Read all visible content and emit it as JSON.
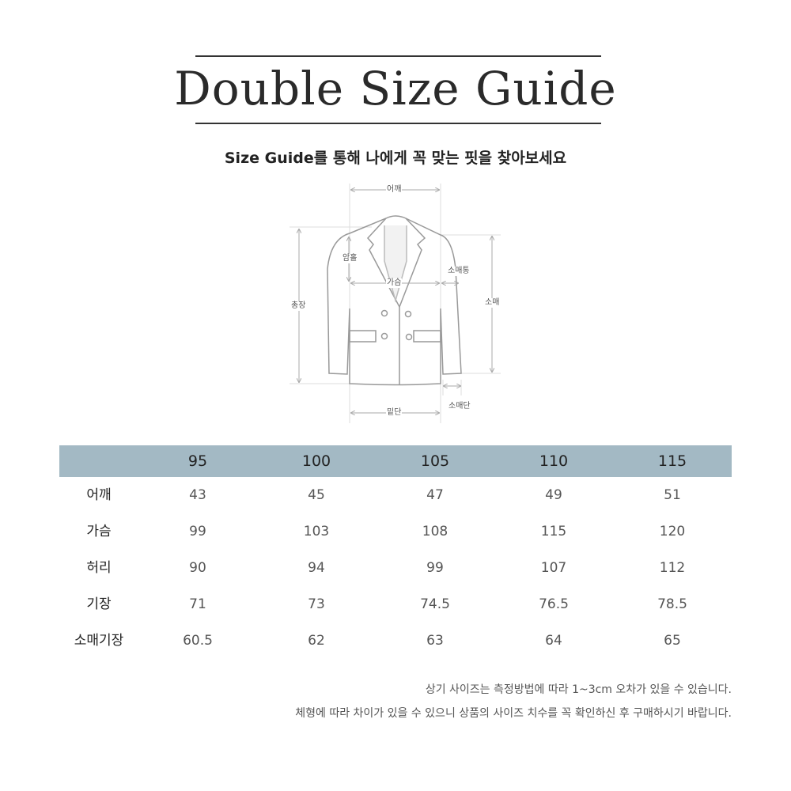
{
  "title": "Double Size Guide",
  "subtitle": "Size Guide를 통해 나에게 꼭 맞는 핏을 찾아보세요",
  "diagram": {
    "shoulder": "어깨",
    "armhole": "암홀",
    "chest": "가슴",
    "sleeve_width": "소매통",
    "total_length": "총장",
    "sleeve_length": "소매",
    "sleeve_hem": "소매단",
    "hem": "밑단"
  },
  "table": {
    "header_color": "#a3b9c4",
    "sizes": [
      "95",
      "100",
      "105",
      "110",
      "115"
    ],
    "rows": [
      {
        "label": "어깨",
        "values": [
          "43",
          "45",
          "47",
          "49",
          "51"
        ]
      },
      {
        "label": "가슴",
        "values": [
          "99",
          "103",
          "108",
          "115",
          "120"
        ]
      },
      {
        "label": "허리",
        "values": [
          "90",
          "94",
          "99",
          "107",
          "112"
        ]
      },
      {
        "label": "기장",
        "values": [
          "71",
          "73",
          "74.5",
          "76.5",
          "78.5"
        ]
      },
      {
        "label": "소매기장",
        "values": [
          "60.5",
          "62",
          "63",
          "64",
          "65"
        ]
      }
    ]
  },
  "notes": [
    "상기 사이즈는 측정방법에 따라 1~3cm 오차가 있을 수 있습니다.",
    "체형에 따라 차이가 있을 수 있으니 상품의 사이즈 치수를 꼭 확인하신 후 구매하시기 바랍니다."
  ]
}
